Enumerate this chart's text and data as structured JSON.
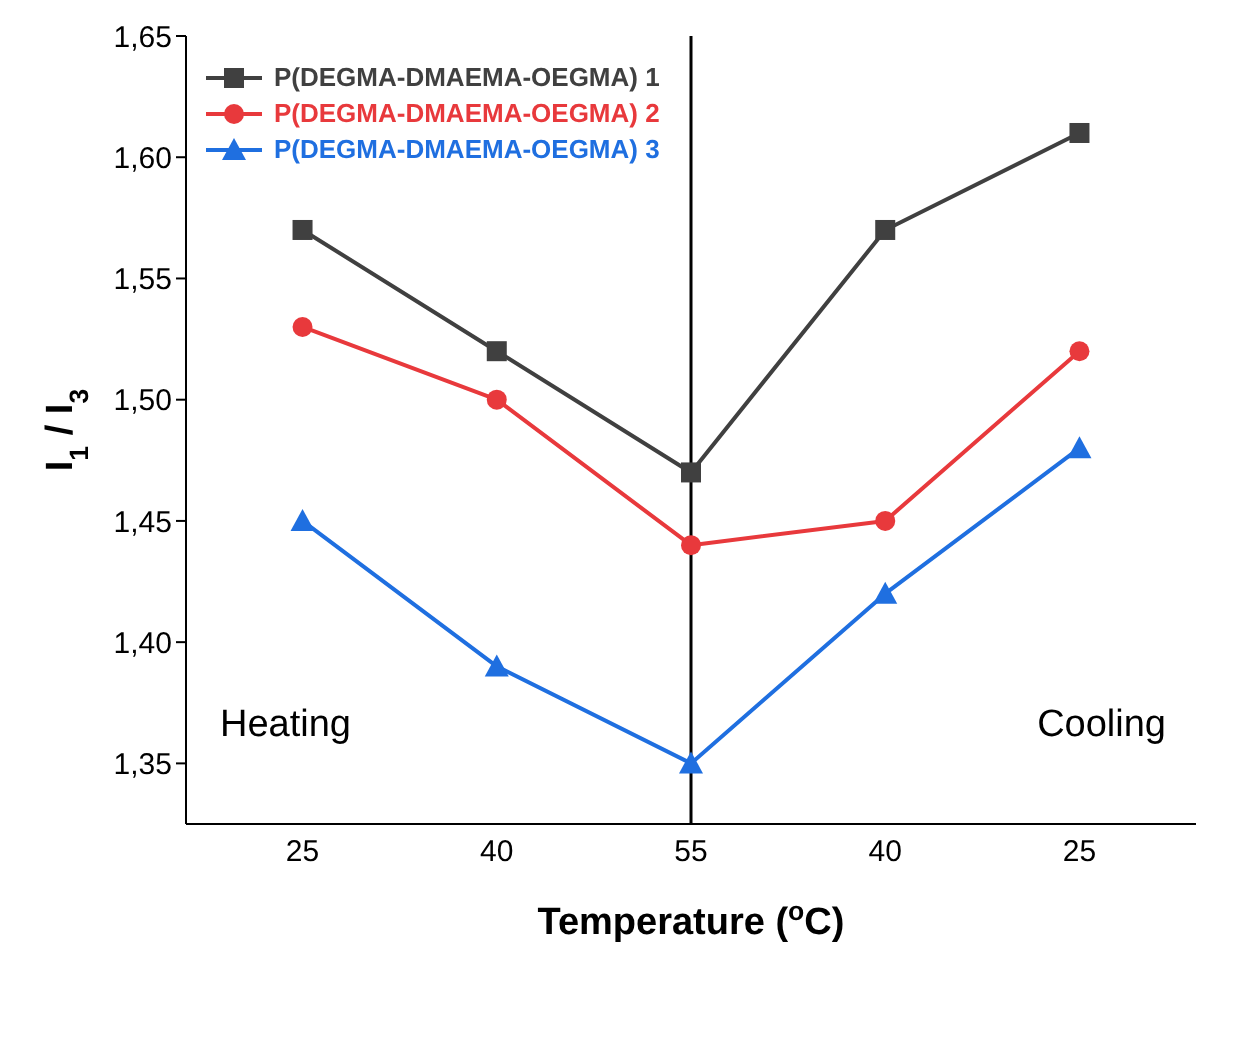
{
  "chart_data": {
    "type": "line",
    "xlabel": "Temperature ($^{o}$C)",
    "ylabel": "I$_{1}$ / I$_{3}$",
    "categories": [
      "25",
      "40",
      "55",
      "40",
      "25"
    ],
    "series": [
      {
        "name": "P(DEGMA-DMAEMA-OEGMA) 1",
        "color": "#404040",
        "marker": "square",
        "values": [
          1.57,
          1.52,
          1.47,
          1.57,
          1.61
        ]
      },
      {
        "name": "P(DEGMA-DMAEMA-OEGMA) 2",
        "color": "#e8393c",
        "marker": "circle",
        "values": [
          1.53,
          1.5,
          1.44,
          1.45,
          1.52
        ]
      },
      {
        "name": "P(DEGMA-DMAEMA-OEGMA) 3",
        "color": "#1f6fe0",
        "marker": "triangle",
        "values": [
          1.45,
          1.39,
          1.35,
          1.42,
          1.48
        ]
      }
    ],
    "ylim": [
      1.325,
      1.65
    ],
    "yticks": [
      {
        "value": 1.35,
        "label": "1,35"
      },
      {
        "value": 1.4,
        "label": "1,40"
      },
      {
        "value": 1.45,
        "label": "1,45"
      },
      {
        "value": 1.5,
        "label": "1,50"
      },
      {
        "value": 1.55,
        "label": "1,55"
      },
      {
        "value": 1.6,
        "label": "1,60"
      },
      {
        "value": 1.65,
        "label": "1,65"
      }
    ],
    "ref_lines": [
      {
        "axis": "x",
        "value": "55",
        "color": "#000000"
      }
    ],
    "annotations": [
      "Heating",
      "Cooling"
    ],
    "legend": "top left",
    "grid": false
  }
}
